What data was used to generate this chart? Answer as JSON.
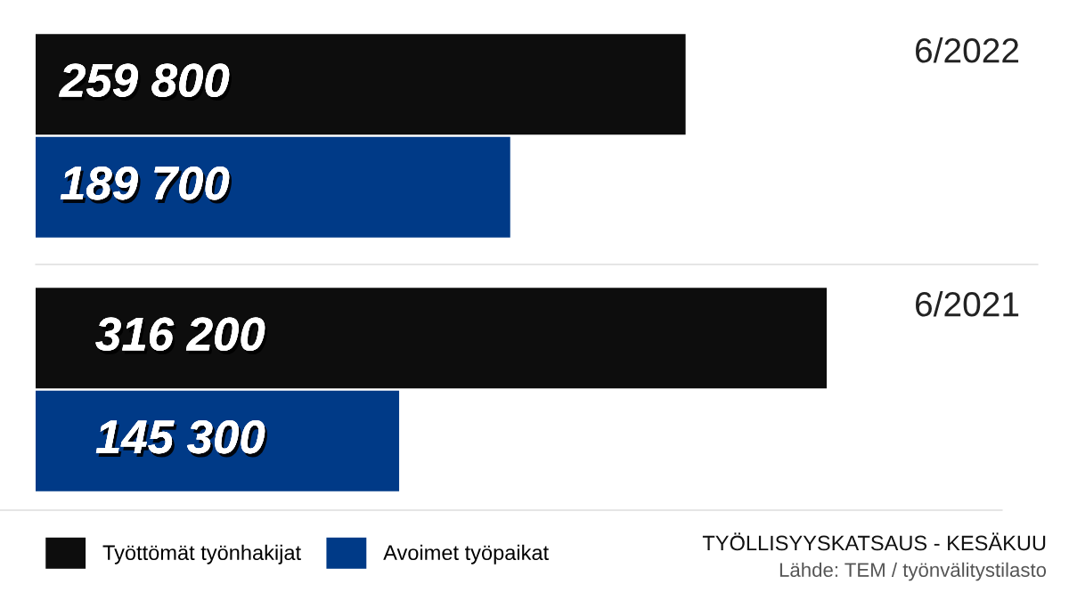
{
  "chart_data": [
    {
      "type": "bar",
      "orientation": "horizontal",
      "categories": [
        "6/2022"
      ],
      "series": [
        {
          "name": "Työttömät työnhakijat",
          "color": "#0d0d0d",
          "values": [
            259800
          ],
          "value_labels": [
            "259 800"
          ]
        },
        {
          "name": "Avoimet työpaikat",
          "color": "#003a87",
          "values": [
            189700
          ],
          "value_labels": [
            "189 700"
          ]
        }
      ],
      "legend": "bottom left"
    },
    {
      "type": "bar",
      "orientation": "horizontal",
      "categories": [
        "6/2021"
      ],
      "series": [
        {
          "color": "#0d0d0d",
          "values": [
            316200
          ],
          "value_labels": [
            "316 200"
          ]
        },
        {
          "color": "#003a87",
          "values": [
            145300
          ],
          "value_labels": [
            "145 300"
          ]
        }
      ],
      "annotations": [
        "TYÖLLISYYSKATSAUS - KESÄKUU",
        "Lähde: TEM / työnvälitystilasto"
      ]
    }
  ]
}
